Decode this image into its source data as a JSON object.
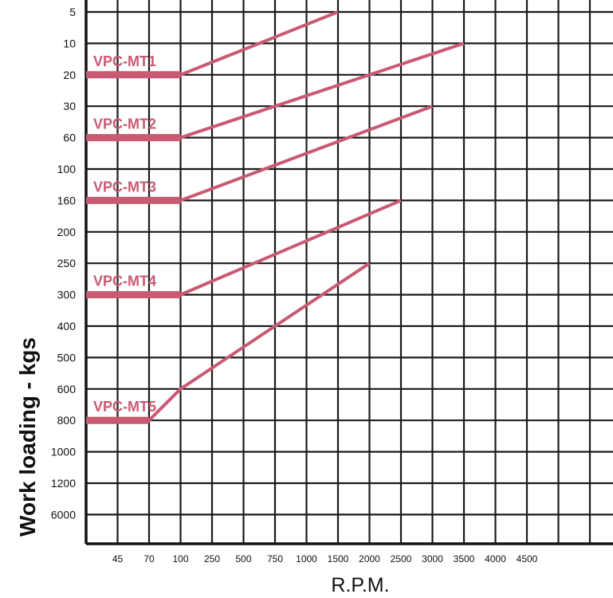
{
  "chart_data": {
    "type": "line",
    "xlabel": "R.P.M.",
    "ylabel": "Work loading - kgs",
    "x_ticks": [
      "45",
      "70",
      "100",
      "250",
      "500",
      "750",
      "1000",
      "1500",
      "2000",
      "2500",
      "3000",
      "3500",
      "4000",
      "4500"
    ],
    "y_ticks": [
      "5",
      "10",
      "20",
      "30",
      "60",
      "100",
      "160",
      "200",
      "250",
      "300",
      "400",
      "500",
      "600",
      "800",
      "1000",
      "1200",
      "6000"
    ],
    "grid": true,
    "series_color": "#c85a72",
    "series": [
      {
        "name": "VPC-MT1",
        "points": [
          [
            "0",
            "20"
          ],
          [
            "100",
            "20"
          ],
          [
            "1500",
            "5"
          ]
        ]
      },
      {
        "name": "VPC-MT2",
        "points": [
          [
            "0",
            "60"
          ],
          [
            "100",
            "60"
          ],
          [
            "3500",
            "10"
          ]
        ]
      },
      {
        "name": "VPC-MT3",
        "points": [
          [
            "0",
            "160"
          ],
          [
            "100",
            "160"
          ],
          [
            "3000",
            "30"
          ]
        ]
      },
      {
        "name": "VPC-MT4",
        "points": [
          [
            "0",
            "300"
          ],
          [
            "100",
            "300"
          ],
          [
            "2500",
            "160"
          ]
        ]
      },
      {
        "name": "VPC-MT5",
        "points": [
          [
            "0",
            "800"
          ],
          [
            "70",
            "800"
          ],
          [
            "100",
            "600"
          ],
          [
            "2000",
            "250"
          ]
        ]
      }
    ]
  }
}
